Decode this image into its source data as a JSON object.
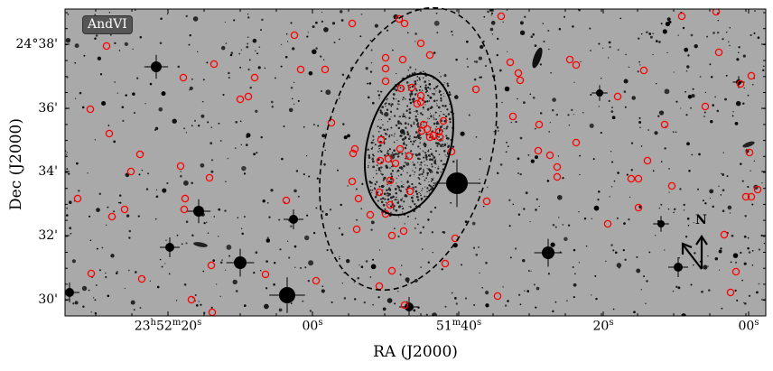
{
  "image": {
    "badge": "AndVI",
    "x_axis_title": "RA (J2000)",
    "y_axis_title": "Dec (J2000)",
    "north_label": "N",
    "y_tick_labels": [
      "24°38'",
      "36'",
      "34'",
      "32'",
      "30'"
    ],
    "x_tick_labels": [
      "23h52m20s",
      "00s",
      "51m40s",
      "20s",
      "00s"
    ],
    "colors": {
      "sky_background": "#a9a9a9",
      "marker": "#ff0000",
      "ellipses": "#000000"
    }
  },
  "chart_data": {
    "type": "scatter",
    "title": "AndVI",
    "xlabel": "RA (J2000)",
    "ylabel": "Dec (J2000)",
    "x_ticks": [
      "23h52m20s",
      "00s",
      "51m40s",
      "20s",
      "00s"
    ],
    "y_ticks": [
      "24°38'",
      "36'",
      "34'",
      "32'",
      "30'"
    ],
    "markers": "red open circles",
    "ellipses": [
      "solid inner ellipse",
      "dashed outer ellipse"
    ],
    "compass": "N arrow"
  }
}
